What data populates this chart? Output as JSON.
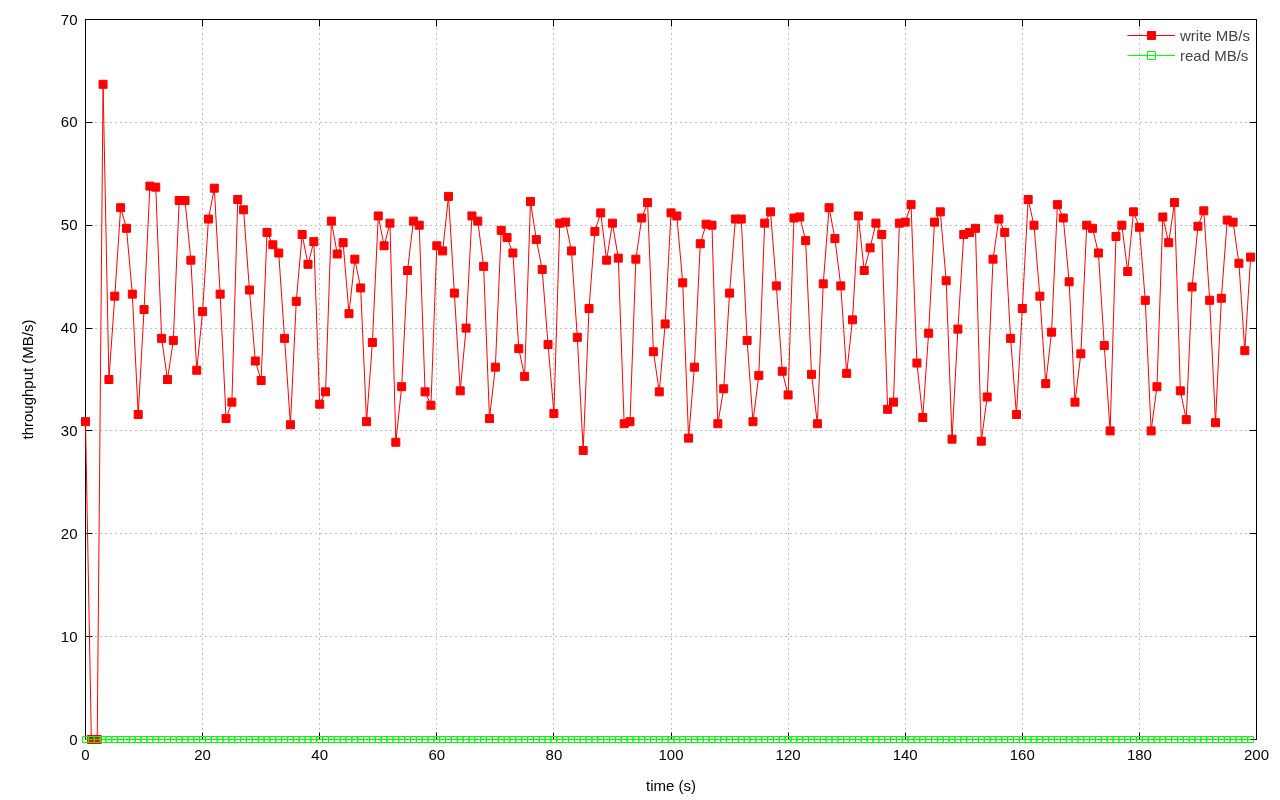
{
  "chart_data": {
    "type": "line",
    "xlabel": "time (s)",
    "ylabel": "throughput (MB/s)",
    "x": [
      0,
      1,
      2,
      3,
      4,
      5,
      6,
      7,
      8,
      9,
      10,
      11,
      12,
      13,
      14,
      15,
      16,
      17,
      18,
      19,
      20,
      21,
      22,
      23,
      24,
      25,
      26,
      27,
      28,
      29,
      30,
      31,
      32,
      33,
      34,
      35,
      36,
      37,
      38,
      39,
      40,
      41,
      42,
      43,
      44,
      45,
      46,
      47,
      48,
      49,
      50,
      51,
      52,
      53,
      54,
      55,
      56,
      57,
      58,
      59,
      60,
      61,
      62,
      63,
      64,
      65,
      66,
      67,
      68,
      69,
      70,
      71,
      72,
      73,
      74,
      75,
      76,
      77,
      78,
      79,
      80,
      81,
      82,
      83,
      84,
      85,
      86,
      87,
      88,
      89,
      90,
      91,
      92,
      93,
      94,
      95,
      96,
      97,
      98,
      99,
      100,
      101,
      102,
      103,
      104,
      105,
      106,
      107,
      108,
      109,
      110,
      111,
      112,
      113,
      114,
      115,
      116,
      117,
      118,
      119,
      120,
      121,
      122,
      123,
      124,
      125,
      126,
      127,
      128,
      129,
      130,
      131,
      132,
      133,
      134,
      135,
      136,
      137,
      138,
      139,
      140,
      141,
      142,
      143,
      144,
      145,
      146,
      147,
      148,
      149,
      150,
      151,
      152,
      153,
      154,
      155,
      156,
      157,
      158,
      159,
      160,
      161,
      162,
      163,
      164,
      165,
      166,
      167,
      168,
      169,
      170,
      171,
      172,
      173,
      174,
      175,
      176,
      177,
      178,
      179,
      180,
      181,
      182,
      183,
      184,
      185,
      186,
      187,
      188,
      189,
      190,
      191,
      192,
      193,
      194,
      195,
      196,
      197,
      198,
      199
    ],
    "series": [
      {
        "name": "write MB/s",
        "color": "#ff0000",
        "values": [
          30.9,
          0,
          0,
          63.7,
          35.0,
          43.1,
          51.7,
          49.7,
          43.3,
          31.6,
          41.8,
          53.8,
          53.7,
          39.0,
          35.0,
          38.8,
          52.4,
          52.4,
          46.6,
          35.9,
          41.6,
          50.6,
          53.6,
          43.3,
          31.2,
          32.8,
          52.5,
          51.5,
          43.7,
          36.8,
          34.9,
          49.3,
          48.1,
          47.3,
          39.0,
          30.6,
          42.6,
          49.1,
          46.2,
          48.4,
          32.6,
          33.8,
          50.4,
          47.2,
          48.3,
          41.4,
          46.7,
          43.9,
          30.9,
          38.6,
          50.9,
          48.0,
          50.2,
          28.9,
          34.3,
          45.6,
          50.4,
          50.0,
          33.8,
          32.5,
          48.0,
          47.5,
          52.8,
          43.4,
          33.9,
          40.0,
          50.9,
          50.4,
          46.0,
          31.2,
          36.2,
          49.5,
          48.8,
          47.3,
          38.0,
          35.3,
          52.3,
          48.6,
          45.7,
          38.4,
          31.7,
          50.2,
          50.3,
          47.5,
          39.1,
          28.1,
          41.9,
          49.4,
          51.2,
          46.6,
          50.2,
          46.8,
          30.7,
          30.9,
          46.7,
          50.7,
          52.2,
          37.7,
          33.8,
          40.4,
          51.2,
          50.9,
          44.4,
          29.3,
          36.2,
          48.2,
          50.1,
          50.0,
          30.7,
          34.1,
          43.4,
          50.6,
          50.6,
          38.8,
          30.9,
          35.4,
          50.2,
          51.3,
          44.1,
          35.8,
          33.5,
          50.7,
          50.8,
          48.5,
          35.5,
          30.7,
          44.3,
          51.7,
          48.7,
          44.1,
          35.6,
          40.8,
          50.9,
          45.6,
          47.8,
          50.2,
          49.1,
          32.1,
          32.8,
          50.2,
          50.3,
          52.0,
          36.6,
          31.3,
          39.5,
          50.3,
          51.3,
          44.6,
          29.2,
          39.9,
          49.1,
          49.3,
          49.7,
          29.0,
          33.3,
          46.7,
          50.6,
          49.3,
          39.0,
          31.6,
          41.9,
          52.5,
          50.0,
          43.1,
          34.6,
          39.6,
          52.0,
          50.7,
          44.5,
          32.8,
          37.5,
          50.0,
          49.7,
          47.3,
          38.3,
          30.0,
          48.9,
          50.0,
          45.5,
          51.3,
          49.8,
          42.7,
          30.0,
          34.3,
          50.8,
          48.3,
          52.2,
          33.9,
          31.1,
          44.0,
          49.9,
          51.4,
          42.7,
          30.8,
          42.9,
          50.5,
          50.3,
          46.3,
          37.8,
          46.9
        ]
      },
      {
        "name": "read MB/s",
        "color": "#00ff00",
        "values": [
          0,
          0,
          0,
          0,
          0,
          0,
          0,
          0,
          0,
          0,
          0,
          0,
          0,
          0,
          0,
          0,
          0,
          0,
          0,
          0,
          0,
          0,
          0,
          0,
          0,
          0,
          0,
          0,
          0,
          0,
          0,
          0,
          0,
          0,
          0,
          0,
          0,
          0,
          0,
          0,
          0,
          0,
          0,
          0,
          0,
          0,
          0,
          0,
          0,
          0,
          0,
          0,
          0,
          0,
          0,
          0,
          0,
          0,
          0,
          0,
          0,
          0,
          0,
          0,
          0,
          0,
          0,
          0,
          0,
          0,
          0,
          0,
          0,
          0,
          0,
          0,
          0,
          0,
          0,
          0,
          0,
          0,
          0,
          0,
          0,
          0,
          0,
          0,
          0,
          0,
          0,
          0,
          0,
          0,
          0,
          0,
          0,
          0,
          0,
          0,
          0,
          0,
          0,
          0,
          0,
          0,
          0,
          0,
          0,
          0,
          0,
          0,
          0,
          0,
          0,
          0,
          0,
          0,
          0,
          0,
          0,
          0,
          0,
          0,
          0,
          0,
          0,
          0,
          0,
          0,
          0,
          0,
          0,
          0,
          0,
          0,
          0,
          0,
          0,
          0,
          0,
          0,
          0,
          0,
          0,
          0,
          0,
          0,
          0,
          0,
          0,
          0,
          0,
          0,
          0,
          0,
          0,
          0,
          0,
          0,
          0,
          0,
          0,
          0,
          0,
          0,
          0,
          0,
          0,
          0,
          0,
          0,
          0,
          0,
          0,
          0,
          0,
          0,
          0,
          0,
          0,
          0,
          0,
          0,
          0,
          0,
          0,
          0,
          0,
          0,
          0,
          0,
          0,
          0,
          0,
          0,
          0,
          0,
          0,
          0
        ]
      }
    ],
    "xlim": [
      0,
      200
    ],
    "ylim": [
      0,
      70
    ],
    "xticks": [
      0,
      20,
      40,
      60,
      80,
      100,
      120,
      140,
      160,
      180,
      200
    ],
    "yticks": [
      0,
      10,
      20,
      30,
      40,
      50,
      60,
      70
    ],
    "grid": true,
    "legend": "top right",
    "marker": "square"
  }
}
